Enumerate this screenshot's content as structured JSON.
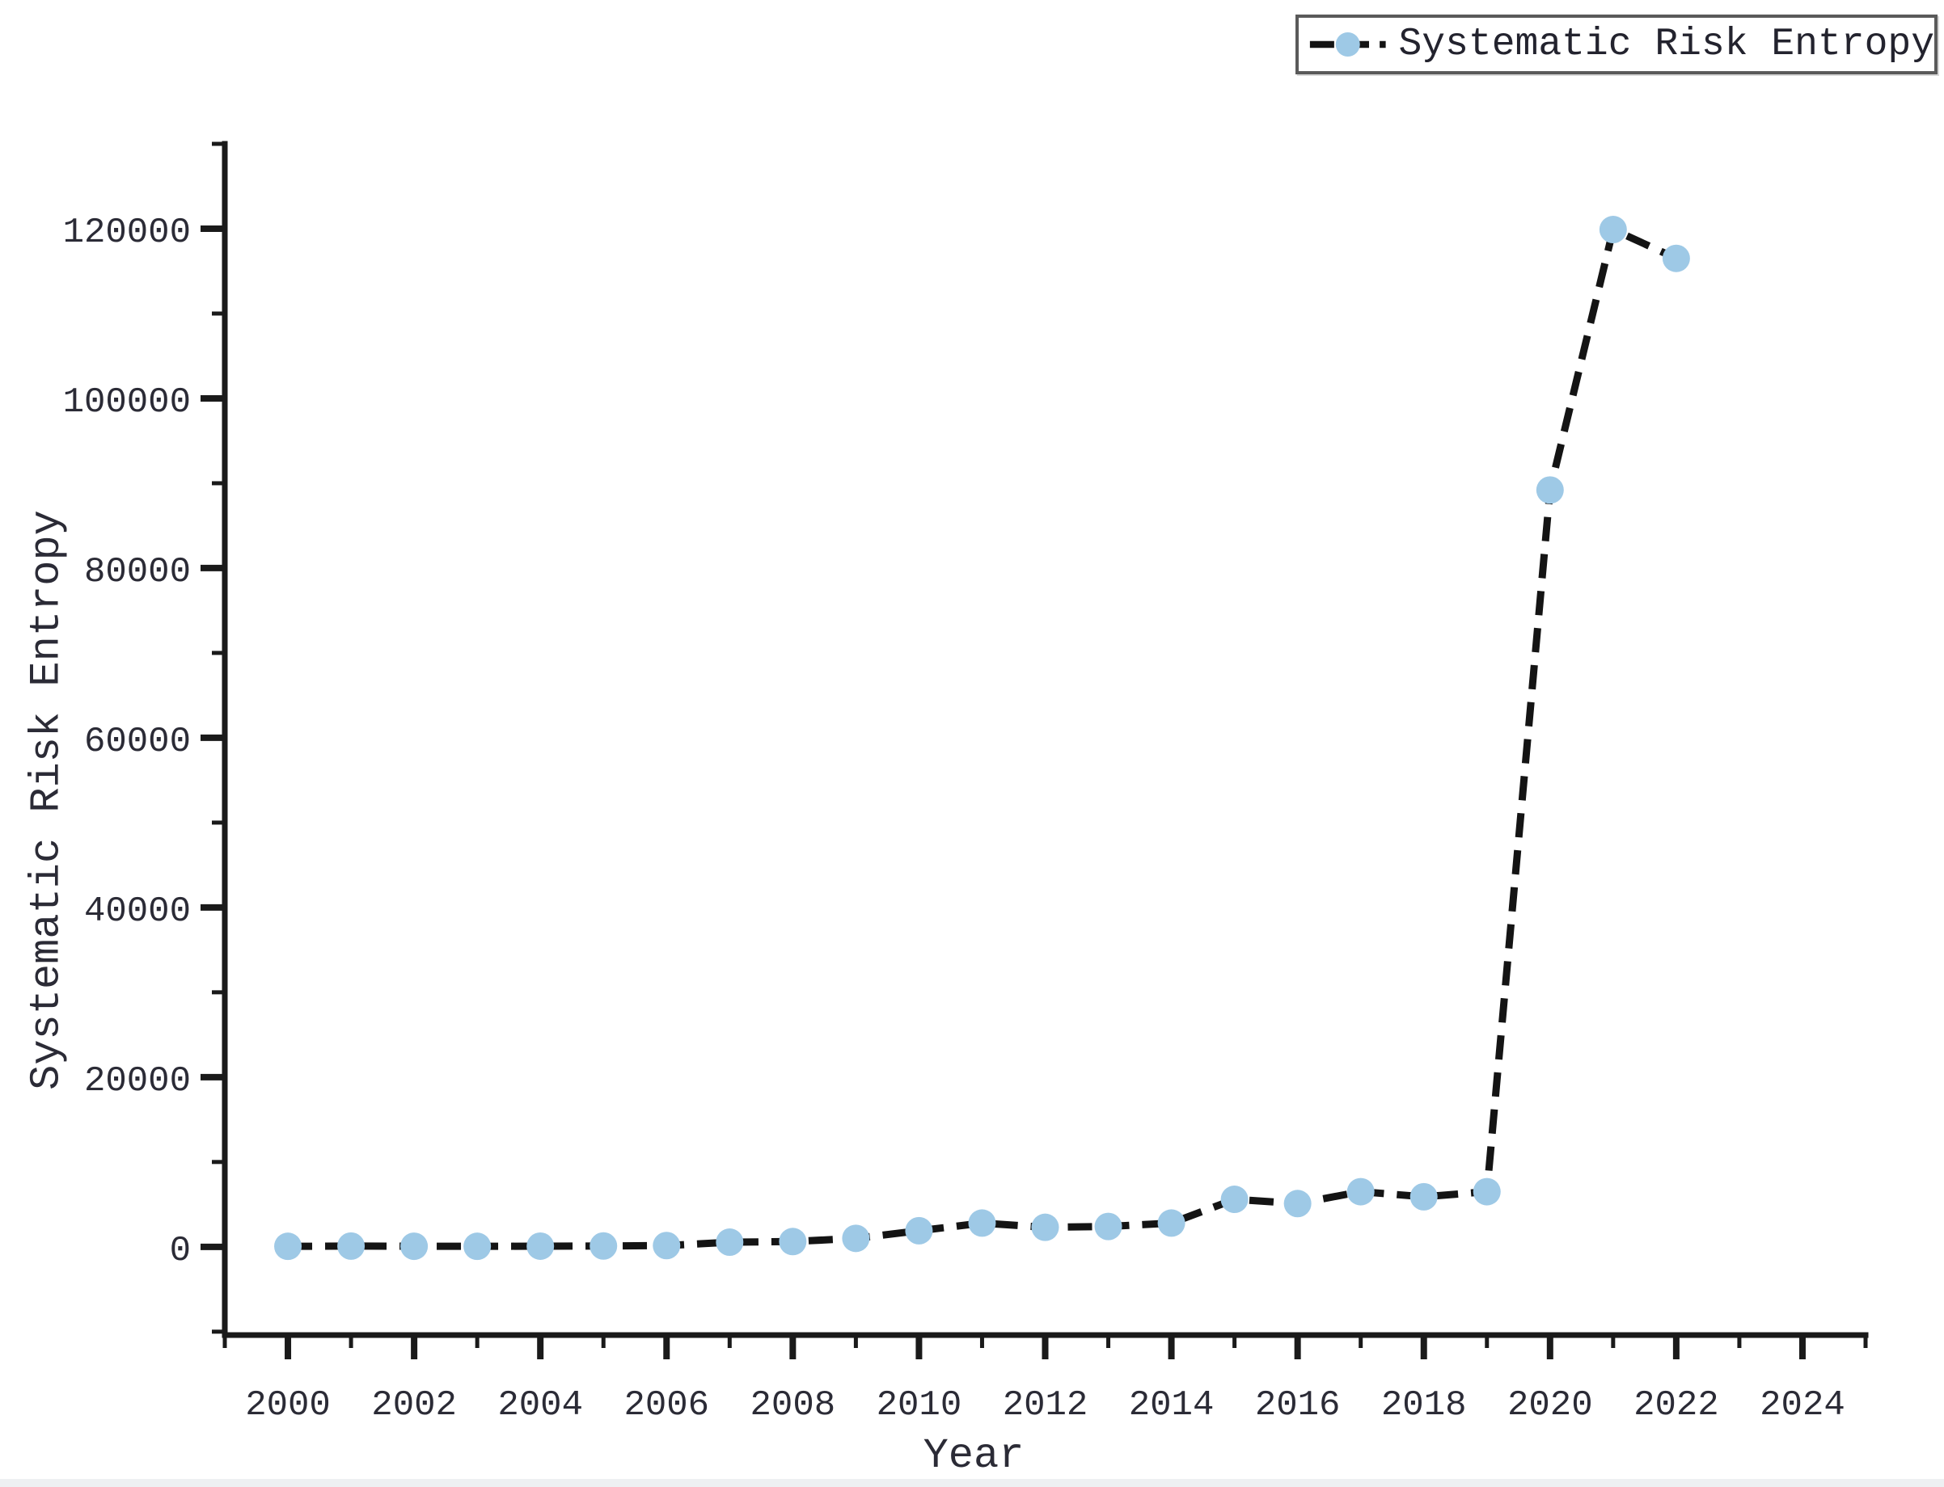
{
  "chart_data": {
    "type": "line",
    "title": "",
    "xlabel": "Year",
    "ylabel": "Systematic Risk Entropy",
    "legend": {
      "label": "Systematic Risk Entropy",
      "position": "upper right"
    },
    "series": [
      {
        "name": "Systematic Risk Entropy",
        "x": [
          2000,
          2001,
          2002,
          2003,
          2004,
          2005,
          2006,
          2007,
          2008,
          2009,
          2010,
          2011,
          2012,
          2013,
          2014,
          2015,
          2016,
          2017,
          2018,
          2019,
          2020,
          2021,
          2022
        ],
        "y": [
          60,
          90,
          70,
          60,
          80,
          100,
          150,
          550,
          620,
          1000,
          1900,
          2800,
          2300,
          2400,
          2800,
          5600,
          5100,
          6500,
          5900,
          6500,
          89200,
          119900,
          116500
        ]
      }
    ],
    "xlim": [
      1999,
      2025
    ],
    "ylim": [
      -10400,
      130000
    ],
    "x_major_ticks": [
      2000,
      2002,
      2004,
      2006,
      2008,
      2010,
      2012,
      2014,
      2016,
      2018,
      2020,
      2022,
      2024
    ],
    "x_minor_ticks": [
      1999,
      2001,
      2003,
      2005,
      2007,
      2009,
      2011,
      2013,
      2015,
      2017,
      2019,
      2021,
      2023,
      2025
    ],
    "y_major_ticks": [
      0,
      20000,
      40000,
      60000,
      80000,
      100000,
      120000
    ],
    "y_minor_ticks": [
      -10000,
      10000,
      30000,
      50000,
      70000,
      90000,
      110000,
      130000
    ],
    "grid": false,
    "style": {
      "line_color": "#141414",
      "line_dash": "30 16",
      "marker_color": "#9ec9e6",
      "marker_radius": 17,
      "axis_color": "#1a1a1a",
      "text_color": "#2b2b36"
    }
  }
}
